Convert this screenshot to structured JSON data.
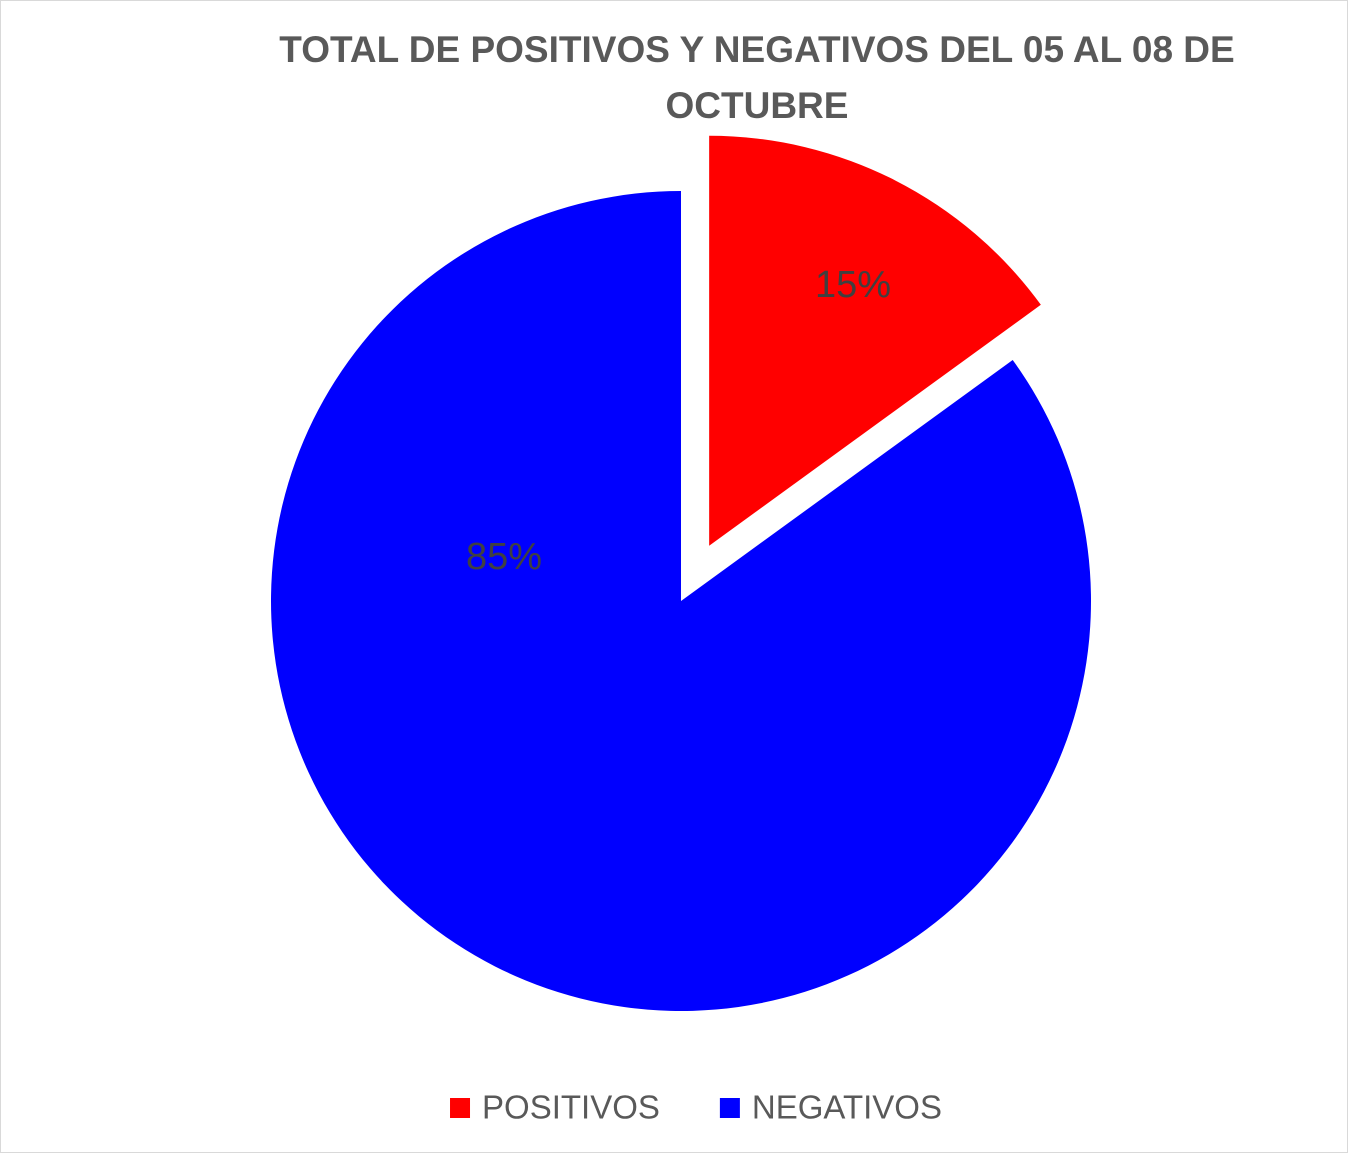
{
  "chart_data": {
    "type": "pie",
    "title": "TOTAL DE POSITIVOS Y NEGATIVOS DEL 05 AL 08 DE OCTUBRE",
    "categories": [
      "POSITIVOS",
      "NEGATIVOS"
    ],
    "values": [
      15,
      85
    ],
    "value_labels": [
      "15%",
      "85%"
    ],
    "colors": [
      "#ff0000",
      "#0000ff"
    ],
    "legend": "bottom"
  }
}
